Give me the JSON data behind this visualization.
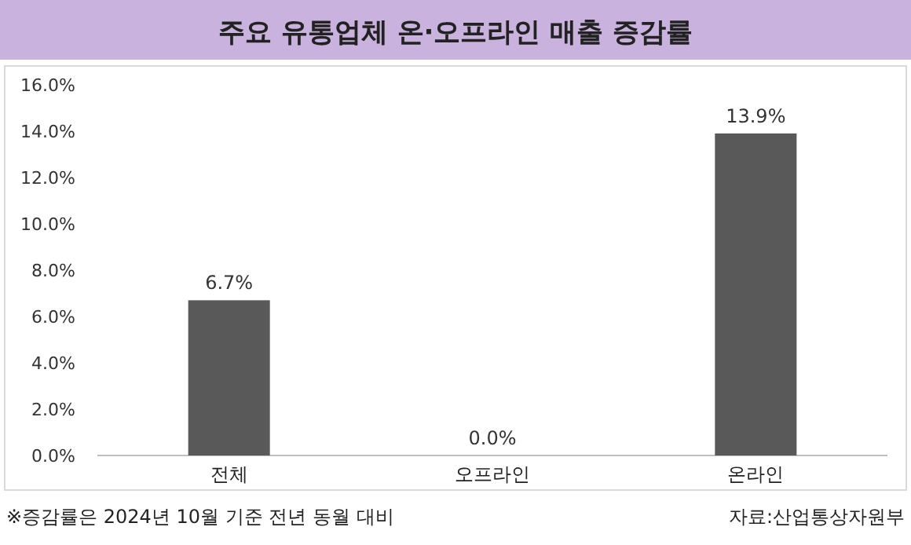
{
  "chart_data": {
    "type": "bar",
    "title": "주요 유통업체 온·오프라인 매출 증감률",
    "categories": [
      "전체",
      "오프라인",
      "온라인"
    ],
    "values": [
      6.7,
      0.0,
      13.9
    ],
    "value_labels": [
      "6.7%",
      "0.0%",
      "13.9%"
    ],
    "color": "#595959",
    "ylim": [
      0,
      16
    ],
    "yticks": [
      {
        "value": 0,
        "label": "0.0%"
      },
      {
        "value": 2,
        "label": "2.0%"
      },
      {
        "value": 4,
        "label": "4.0%"
      },
      {
        "value": 6,
        "label": "6.0%"
      },
      {
        "value": 8,
        "label": "8.0%"
      },
      {
        "value": 10,
        "label": "10.0%"
      },
      {
        "value": 12,
        "label": "12.0%"
      },
      {
        "value": 14,
        "label": "14.0%"
      },
      {
        "value": 16,
        "label": "16.0%"
      }
    ],
    "annotations": [
      "※증감률은 2024년 10월 기준 전년 동월 대비",
      "자료:산업통상자원부"
    ]
  }
}
